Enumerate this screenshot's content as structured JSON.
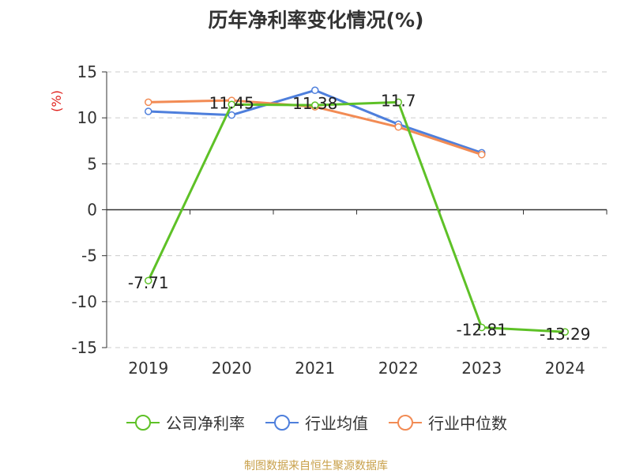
{
  "chart_data": {
    "type": "line",
    "title": "历年净利率变化情况(%)",
    "ylabel": "(%)",
    "categories": [
      "2019",
      "2020",
      "2021",
      "2022",
      "2023",
      "2024"
    ],
    "ylim": [
      -15,
      15
    ],
    "yticks": [
      15,
      10,
      5,
      0,
      -5,
      -10,
      -15
    ],
    "grid": true,
    "legend_position": "bottom",
    "series": [
      {
        "name": "公司净利率",
        "color": "#5ec127",
        "values": [
          -7.71,
          11.45,
          11.38,
          11.7,
          -12.81,
          -13.29
        ],
        "labels": [
          "-7.71",
          "11.45",
          "11.38",
          "11.7",
          "-12.81",
          "-13.29"
        ]
      },
      {
        "name": "行业均值",
        "color": "#4e7fdc",
        "values": [
          10.7,
          10.3,
          13.0,
          9.3,
          6.2,
          null
        ]
      },
      {
        "name": "行业中位数",
        "color": "#f28b54",
        "values": [
          11.7,
          11.9,
          11.2,
          9.0,
          6.0,
          null
        ]
      }
    ]
  },
  "source": "制图数据来自恒生聚源数据库"
}
